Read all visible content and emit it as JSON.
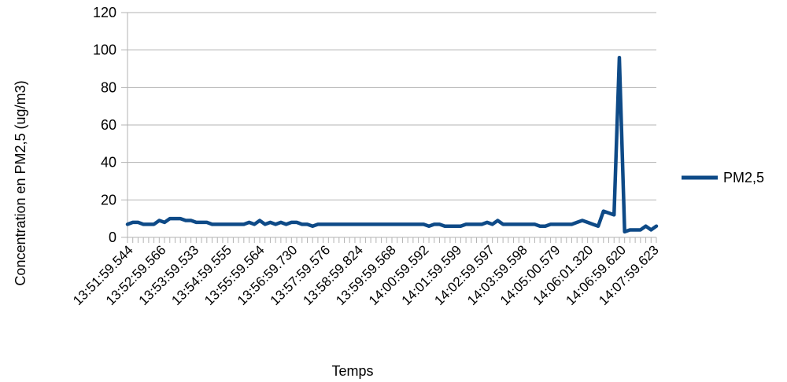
{
  "chart_data": {
    "type": "line",
    "title": "",
    "xlabel": "Temps",
    "ylabel": "Concentration en PM2,5 (ug/m3)",
    "ylim": [
      0,
      120
    ],
    "y_ticks": [
      0,
      20,
      40,
      60,
      80,
      100,
      120
    ],
    "grid": "horizontal",
    "legend_position": "right",
    "color": "#0e4a87",
    "x_tick_labels": [
      "13:51:59.544",
      "13:52:59.566",
      "13:53:59.533",
      "13:54:59.555",
      "13:55:59.564",
      "13:56:59.730",
      "13:57:59.576",
      "13:58:59.824",
      "13:59:59.568",
      "14:00:59.592",
      "14:01:59.599",
      "14:02:59.597",
      "14:03:59.598",
      "14:05:00.579",
      "14:06:01.320",
      "14:06:59.620",
      "14:07:59.623"
    ],
    "series": [
      {
        "name": "PM2,5",
        "values": [
          7,
          8,
          8,
          7,
          7,
          7,
          9,
          8,
          10,
          10,
          10,
          9,
          9,
          8,
          8,
          8,
          7,
          7,
          7,
          7,
          7,
          7,
          7,
          8,
          7,
          9,
          7,
          8,
          7,
          8,
          7,
          8,
          8,
          7,
          7,
          6,
          7,
          7,
          7,
          7,
          7,
          7,
          7,
          7,
          7,
          7,
          7,
          7,
          7,
          7,
          7,
          7,
          7,
          7,
          7,
          7,
          7,
          6,
          7,
          7,
          6,
          6,
          6,
          6,
          7,
          7,
          7,
          7,
          8,
          7,
          9,
          7,
          7,
          7,
          7,
          7,
          7,
          7,
          6,
          6,
          7,
          7,
          7,
          7,
          7,
          8,
          9,
          8,
          7,
          6,
          14,
          13,
          12,
          96,
          3,
          4,
          4,
          4,
          6,
          4,
          6
        ]
      }
    ]
  }
}
